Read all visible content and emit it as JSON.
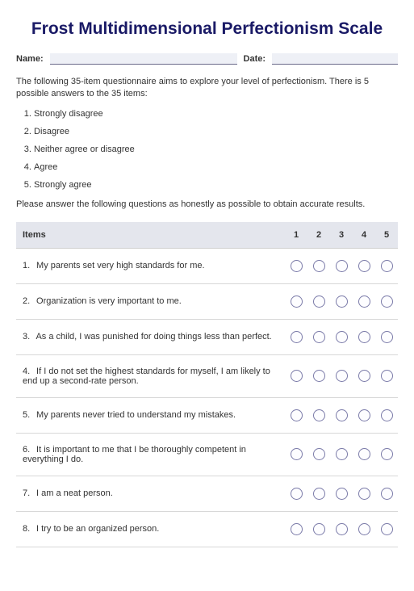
{
  "title_color": "#1a1a66",
  "title": "Frost Multidimensional Perfectionism Scale",
  "fields": {
    "name_label": "Name:",
    "date_label": "Date:",
    "name_value": "",
    "date_value": ""
  },
  "intro_text": "The following 35-item questionnaire aims to explore your level of perfectionism. There is 5 possible answers to the 35 items:",
  "scale_options": [
    "Strongly disagree",
    "Disagree",
    "Neither agree or disagree",
    "Agree",
    "Strongly agree"
  ],
  "instruction_text": "Please answer the following questions as honestly as possible to obtain accurate results.",
  "table": {
    "header_item": "Items",
    "columns": [
      "1",
      "2",
      "3",
      "4",
      "5"
    ],
    "rows": [
      {
        "n": "1.",
        "text": "My parents set very high standards for me."
      },
      {
        "n": "2.",
        "text": "Organization is very important to me."
      },
      {
        "n": "3.",
        "text": "As a child, I was punished for doing things less than perfect."
      },
      {
        "n": "4.",
        "text": "If I do not set the highest standards for myself, I am likely to end up a second-rate person."
      },
      {
        "n": "5.",
        "text": "My parents never tried to understand my mistakes."
      },
      {
        "n": "6.",
        "text": "It is important to me that I be thoroughly competent in everything I do."
      },
      {
        "n": "7.",
        "text": "I am a neat person."
      },
      {
        "n": "8.",
        "text": "I try to be an organized person."
      }
    ]
  },
  "styling": {
    "background_color": "#ffffff",
    "header_bg": "#e4e6ed",
    "border_color": "#d8d8d8",
    "radio_border": "#7a7aa8",
    "input_bg": "#eef0f6",
    "body_font_size": 11,
    "title_font_size": 21
  }
}
